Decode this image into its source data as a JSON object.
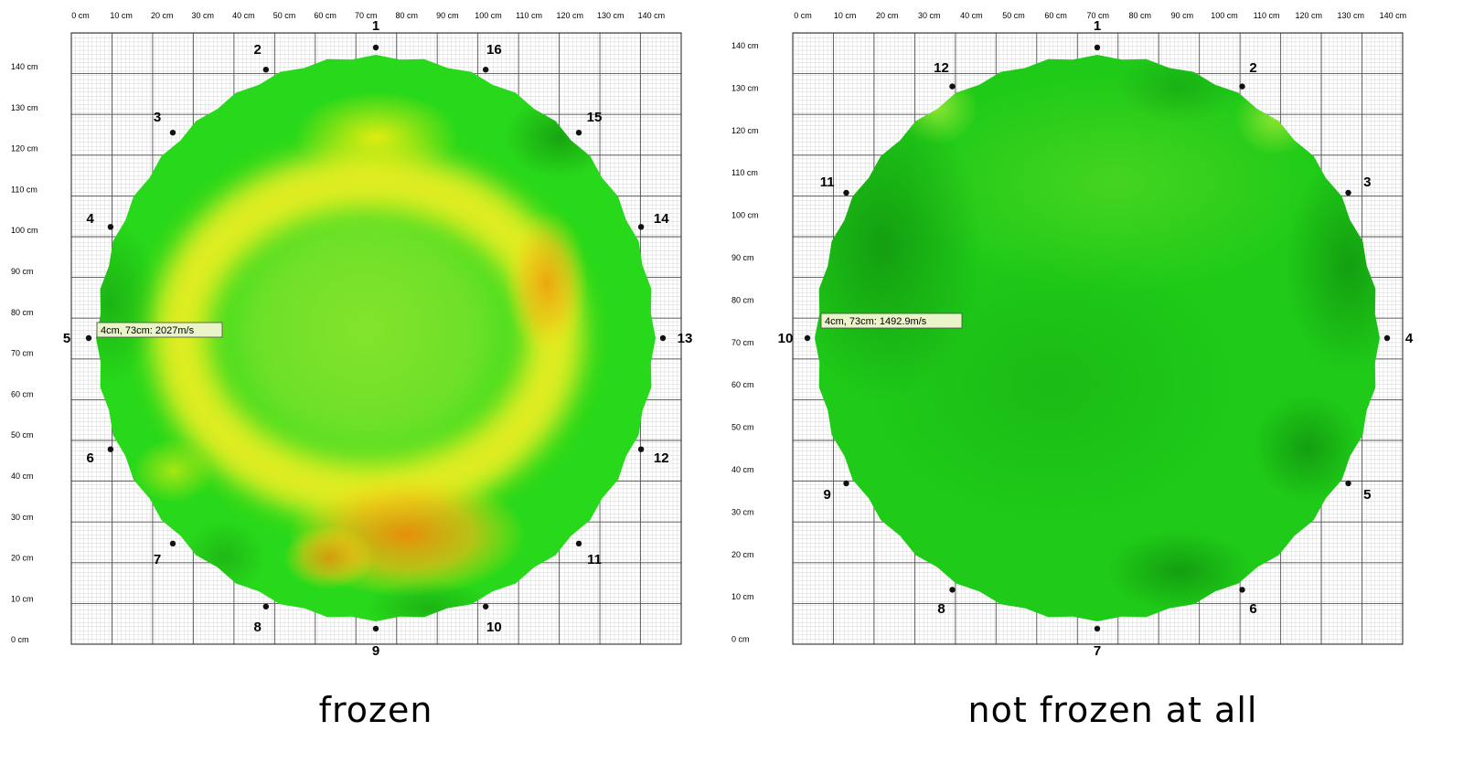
{
  "chart_data": [
    {
      "type": "heatmap",
      "caption": "frozen",
      "x_ticks": [
        "0 cm",
        "10 cm",
        "20 cm",
        "30 cm",
        "40 cm",
        "50 cm",
        "60 cm",
        "70 cm",
        "80 cm",
        "90 cm",
        "100 cm",
        "110 cm",
        "120 cm",
        "130 cm",
        "140 cm"
      ],
      "y_ticks": [
        "140 cm",
        "130 cm",
        "120 cm",
        "110 cm",
        "100 cm",
        "90 cm",
        "80 cm",
        "70 cm",
        "60 cm",
        "50 cm",
        "40 cm",
        "30 cm",
        "20 cm",
        "10 cm",
        "0 cm"
      ],
      "xlim": [
        0,
        150
      ],
      "ylim": [
        0,
        150
      ],
      "sensor_count": 16,
      "sensors": [
        "1",
        "2",
        "3",
        "4",
        "5",
        "6",
        "7",
        "8",
        "9",
        "10",
        "11",
        "12",
        "13",
        "14",
        "15",
        "16"
      ],
      "tooltip": "4cm, 73cm: 2027m/s",
      "tooltip_point": {
        "x": 4,
        "y": 73,
        "value": 2027,
        "unit": "m/s"
      },
      "heat_spots": [
        {
          "x": 75,
          "y": 125,
          "level": 0.55
        },
        {
          "x": 118,
          "y": 92,
          "level": 0.55
        },
        {
          "x": 78,
          "y": 24,
          "level": 0.95
        },
        {
          "x": 60,
          "y": 22,
          "level": 0.65
        },
        {
          "x": 25,
          "y": 40,
          "level": 0.35
        }
      ]
    },
    {
      "type": "heatmap",
      "caption": "not frozen at all",
      "x_ticks": [
        "0 cm",
        "10 cm",
        "20 cm",
        "30 cm",
        "40 cm",
        "50 cm",
        "60 cm",
        "70 cm",
        "80 cm",
        "90 cm",
        "100 cm",
        "110 cm",
        "120 cm",
        "130 cm",
        "140 cm"
      ],
      "y_ticks": [
        "140 cm",
        "130 cm",
        "120 cm",
        "110 cm",
        "100 cm",
        "90 cm",
        "80 cm",
        "70 cm",
        "60 cm",
        "50 cm",
        "40 cm",
        "30 cm",
        "20 cm",
        "10 cm",
        "0 cm"
      ],
      "xlim": [
        0,
        145
      ],
      "ylim": [
        0,
        143
      ],
      "sensor_count": 12,
      "sensors": [
        "1",
        "2",
        "3",
        "4",
        "5",
        "6",
        "7",
        "8",
        "9",
        "10",
        "11",
        "12"
      ],
      "tooltip": "4cm, 73cm: 1492.9m/s",
      "tooltip_point": {
        "x": 4,
        "y": 73,
        "value": 1492.9,
        "unit": "m/s"
      }
    }
  ]
}
